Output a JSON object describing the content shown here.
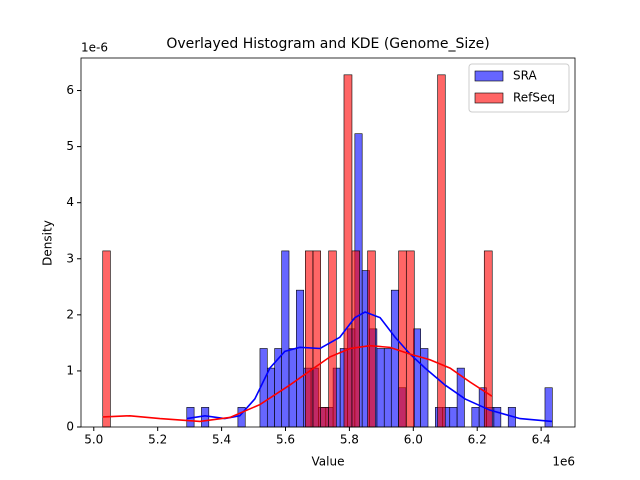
{
  "chart_data": {
    "type": "histogram",
    "title": "Overlayed Histogram and KDE (Genome_Size)",
    "xlabel": "Value",
    "ylabel": "Density",
    "x_offset_label": "1e6",
    "y_offset_label": "1e-6",
    "xlim": [
      4.96,
      6.506
    ],
    "ylim": [
      0,
      6.58
    ],
    "xticks": [
      {
        "value": 5.0,
        "label": "5.0"
      },
      5.2,
      5.4,
      5.6,
      5.8,
      {
        "value": 6.0,
        "label": "6.0"
      },
      6.2,
      6.4
    ],
    "yticks": [
      0,
      1,
      2,
      3,
      4,
      5,
      6
    ],
    "legend": "upper right",
    "bar_alpha": 0.6,
    "series": [
      {
        "name": "SRA",
        "color": "#0000ff",
        "bins": [
          5.291,
          5.314,
          5.337,
          5.36,
          5.383,
          5.405,
          5.428,
          5.451,
          5.474,
          5.497,
          5.52,
          5.543,
          5.566,
          5.588,
          5.611,
          5.634,
          5.657,
          5.68,
          5.703,
          5.726,
          5.749,
          5.771,
          5.794,
          5.817,
          5.84,
          5.863,
          5.886,
          5.909,
          5.931,
          5.954,
          5.977,
          6.0,
          6.023,
          6.046,
          6.069,
          6.092,
          6.114,
          6.137,
          6.16,
          6.183,
          6.206,
          6.229,
          6.252,
          6.274,
          6.297,
          6.32,
          6.343,
          6.366,
          6.389,
          6.412,
          6.435
        ],
        "values": [
          0.35,
          0,
          0.35,
          0,
          0,
          0,
          0,
          0.35,
          0,
          0,
          1.4,
          1.05,
          1.4,
          3.14,
          1.4,
          2.44,
          1.05,
          1.05,
          0.35,
          0.35,
          1.05,
          1.4,
          1.75,
          5.23,
          2.79,
          1.75,
          1.4,
          1.4,
          2.44,
          0.7,
          0,
          1.75,
          1.4,
          0,
          0.35,
          0.35,
          0.35,
          1.05,
          0,
          0.35,
          0.7,
          0.35,
          0.35,
          0,
          0.35,
          0,
          0,
          0,
          0,
          0.7
        ],
        "kde": {
          "x": [
            5.291,
            5.348,
            5.41,
            5.457,
            5.504,
            5.551,
            5.598,
            5.645,
            5.708,
            5.77,
            5.817,
            5.849,
            5.896,
            5.943,
            5.99,
            6.037,
            6.099,
            6.162,
            6.24,
            6.334,
            6.434
          ],
          "y": [
            0.15,
            0.2,
            0.15,
            0.2,
            0.5,
            1.05,
            1.35,
            1.42,
            1.4,
            1.6,
            1.95,
            2.05,
            1.95,
            1.6,
            1.3,
            1.05,
            0.75,
            0.5,
            0.3,
            0.15,
            0.1
          ]
        }
      },
      {
        "name": "RefSeq",
        "color": "#ff0000",
        "bins": [
          5.028,
          5.052,
          5.077,
          5.101,
          5.125,
          5.15,
          5.174,
          5.199,
          5.223,
          5.247,
          5.272,
          5.296,
          5.32,
          5.345,
          5.369,
          5.394,
          5.418,
          5.442,
          5.467,
          5.491,
          5.515,
          5.54,
          5.564,
          5.589,
          5.613,
          5.637,
          5.662,
          5.686,
          5.71,
          5.735,
          5.759,
          5.783,
          5.808,
          5.832,
          5.857,
          5.881,
          5.905,
          5.93,
          5.954,
          5.978,
          6.003,
          6.027,
          6.052,
          6.076,
          6.1,
          6.125,
          6.149,
          6.173,
          6.198,
          6.222,
          6.247
        ],
        "values": [
          3.14,
          0,
          0,
          0,
          0,
          0,
          0,
          0,
          0,
          0,
          0,
          0,
          0,
          0,
          0,
          0,
          0,
          0,
          0,
          0,
          0,
          0,
          0,
          0,
          0,
          0,
          3.14,
          3.14,
          0.35,
          3.14,
          0,
          6.28,
          3.14,
          0,
          3.14,
          0,
          0,
          0,
          3.14,
          3.14,
          0,
          0,
          0,
          6.28,
          0,
          0,
          0,
          0,
          0,
          3.14
        ],
        "kde": {
          "x": [
            5.028,
            5.113,
            5.207,
            5.332,
            5.426,
            5.52,
            5.614,
            5.676,
            5.739,
            5.802,
            5.864,
            5.927,
            5.99,
            6.052,
            6.115,
            6.178,
            6.246
          ],
          "y": [
            0.18,
            0.2,
            0.15,
            0.1,
            0.17,
            0.4,
            0.75,
            1.0,
            1.25,
            1.4,
            1.45,
            1.42,
            1.3,
            1.2,
            1.05,
            0.8,
            0.55
          ]
        }
      }
    ]
  }
}
